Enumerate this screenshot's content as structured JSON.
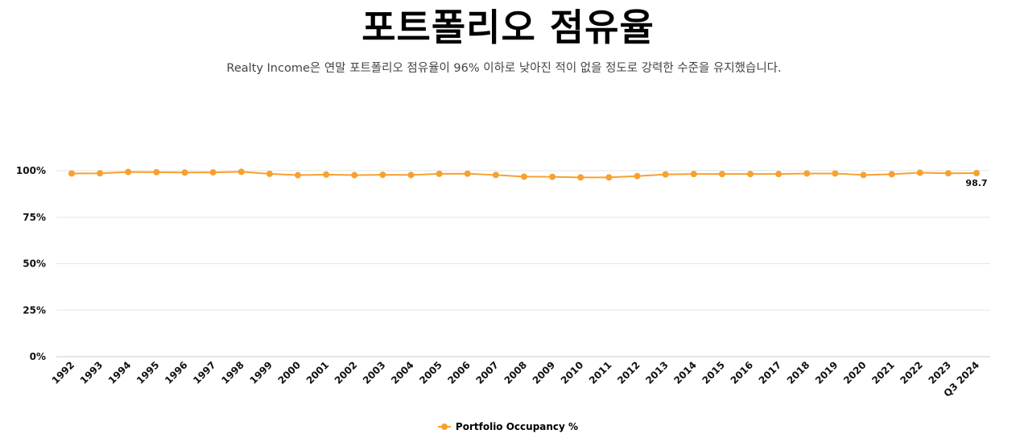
{
  "header": {
    "title": "포트폴리오 점유율",
    "subtitle": "Realty Income은 연말 포트폴리오 점유율이 96% 이하로 낮아진 적이 없을 정도로 강력한 수준을 유지했습니다."
  },
  "colors": {
    "series": "#F7A130",
    "grid": "#E6E6E6",
    "axis": "#CCCCCC"
  },
  "chart_data": {
    "type": "line",
    "title": "포트폴리오 점유율",
    "subtitle": "Realty Income은 연말 포트폴리오 점유율이 96% 이하로 낮아진 적이 없을 정도로 강력한 수준을 유지했습니다.",
    "xlabel": "",
    "ylabel": "",
    "ylim": [
      0,
      100
    ],
    "yticks": [
      0,
      25,
      50,
      75,
      100
    ],
    "ytick_labels": [
      "0%",
      "25%",
      "50%",
      "75%",
      "100%"
    ],
    "grid": true,
    "legend_position": "bottom-center",
    "categories": [
      "1992",
      "1993",
      "1994",
      "1995",
      "1996",
      "1997",
      "1998",
      "1999",
      "2000",
      "2001",
      "2002",
      "2003",
      "2004",
      "2005",
      "2006",
      "2007",
      "2008",
      "2009",
      "2010",
      "2011",
      "2012",
      "2013",
      "2014",
      "2015",
      "2016",
      "2017",
      "2018",
      "2019",
      "2020",
      "2021",
      "2022",
      "2023",
      "Q3 2024"
    ],
    "series": [
      {
        "name": "Portfolio Occupancy %",
        "values": [
          98.5,
          98.6,
          99.3,
          99.2,
          99.0,
          99.1,
          99.4,
          98.3,
          97.6,
          97.9,
          97.6,
          97.8,
          97.7,
          98.3,
          98.4,
          97.7,
          96.8,
          96.7,
          96.4,
          96.4,
          97.1,
          98.0,
          98.2,
          98.2,
          98.2,
          98.2,
          98.5,
          98.5,
          97.7,
          98.1,
          98.9,
          98.6,
          98.7
        ],
        "labels": {
          "32": "98.7"
        }
      }
    ]
  }
}
